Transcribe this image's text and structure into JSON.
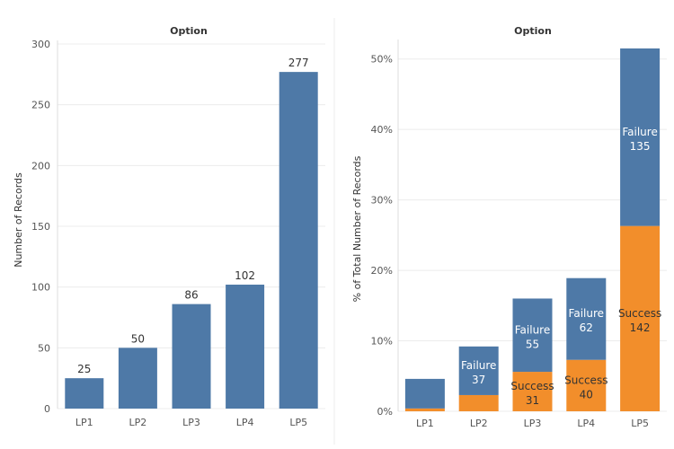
{
  "chart_data": [
    {
      "type": "bar",
      "title": "Option",
      "ylabel": "Number of Records",
      "xlabel": "",
      "categories": [
        "LP1",
        "LP2",
        "LP3",
        "LP4",
        "LP5"
      ],
      "values": [
        25,
        50,
        86,
        102,
        277
      ],
      "ylim": [
        0,
        300
      ],
      "yticks": [
        "0",
        "50",
        "100",
        "150",
        "200",
        "250",
        "300"
      ],
      "grid": true,
      "colors": {
        "bar": "#4e79a7"
      }
    },
    {
      "type": "bar",
      "stacked": true,
      "title": "Option",
      "ylabel": "% of Total Number of Records",
      "xlabel": "",
      "categories": [
        "LP1",
        "LP2",
        "LP3",
        "LP4",
        "LP5"
      ],
      "ylim": [
        0,
        52
      ],
      "yticks": [
        "0%",
        "10%",
        "20%",
        "30%",
        "40%",
        "50%"
      ],
      "series": [
        {
          "name": "Success",
          "values": [
            0.4,
            2.3,
            5.6,
            7.3,
            26.3
          ],
          "counts": [
            "",
            "",
            "31",
            "40",
            "142"
          ],
          "color": "#f28e2b"
        },
        {
          "name": "Failure",
          "values": [
            4.2,
            6.9,
            10.4,
            11.6,
            25.2
          ],
          "counts": [
            "",
            "37",
            "55",
            "62",
            "135"
          ],
          "color": "#4e79a7"
        }
      ],
      "grid": true
    }
  ]
}
